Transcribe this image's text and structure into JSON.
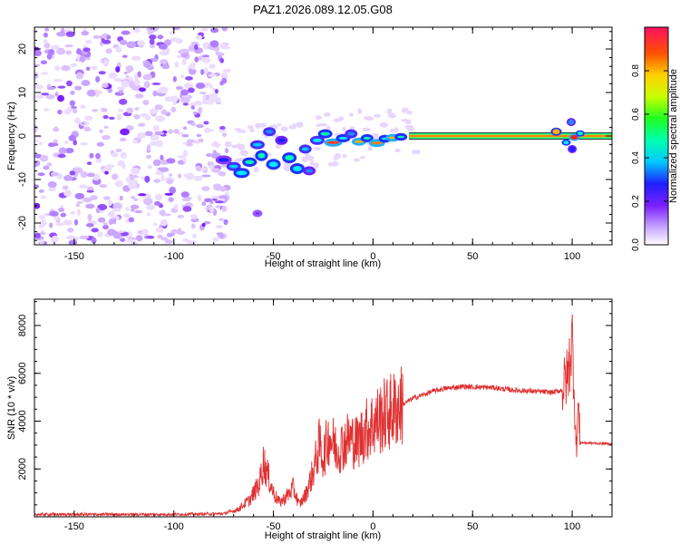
{
  "title": "PAZ1.2026.089.12.05.G08",
  "colors": {
    "signal": "#e03030",
    "scatter": "#7a1fff",
    "track": "#ff2020",
    "band_edge": "#00e8ff"
  },
  "chart_data": [
    {
      "type": "heatmap",
      "name": "spectrogram",
      "title": "PAZ1.2026.089.12.05.G08",
      "xlabel": "Height of straight line (km)",
      "ylabel": "Frequency (Hz)",
      "xlim": [
        -170,
        120
      ],
      "ylim": [
        -25,
        25
      ],
      "x_ticks": [
        -150,
        -100,
        -50,
        0,
        50,
        100
      ],
      "x_tick_labels": [
        "-150",
        "-100",
        "-50",
        "0",
        "50",
        "100"
      ],
      "y_ticks": [
        20,
        10,
        0,
        -10,
        -20
      ],
      "y_tick_labels": [
        "20",
        "10",
        "0",
        "-10",
        "-20"
      ],
      "noise_region_x": [
        -170,
        -73
      ],
      "band_center_hz": 0,
      "colorbar": {
        "label": "Normalized spectral amplitude",
        "range": [
          0,
          1
        ],
        "ticks": [
          0.0,
          0.2,
          0.4,
          0.6,
          0.8
        ],
        "tick_labels": [
          "0.0",
          "0.2",
          "0.4",
          "0.6",
          "0.8"
        ]
      }
    },
    {
      "type": "line",
      "name": "snr",
      "xlabel": "Height of straight line (km)",
      "ylabel": "SNR (10 * v/v)",
      "xlim": [
        -170,
        120
      ],
      "ylim": [
        0,
        9100
      ],
      "x_ticks": [
        -150,
        -100,
        -50,
        0,
        50,
        100
      ],
      "x_tick_labels": [
        "-150",
        "-100",
        "-50",
        "0",
        "50",
        "100"
      ],
      "y_ticks": [
        2000,
        4000,
        6000,
        8000
      ],
      "y_tick_labels": [
        "2000",
        "4000",
        "6000",
        "8000"
      ],
      "series": [
        {
          "name": "SNR",
          "x": [
            -170,
            -100,
            -75,
            -68,
            -62,
            -57,
            -55,
            -53,
            -50,
            -47,
            -44,
            -40,
            -37,
            -34,
            -30,
            -27,
            -25,
            -22,
            -18,
            -12,
            -8,
            -4,
            0,
            5,
            10,
            15,
            20,
            25,
            30,
            35,
            40,
            45,
            50,
            55,
            60,
            65,
            70,
            75,
            80,
            85,
            90,
            95,
            98,
            100,
            101,
            102,
            103,
            104,
            120
          ],
          "y": [
            100,
            100,
            130,
            300,
            700,
            1400,
            2300,
            1800,
            1000,
            600,
            800,
            1200,
            500,
            900,
            1900,
            3000,
            2500,
            3400,
            2800,
            3300,
            3100,
            3600,
            3900,
            4200,
            4450,
            4700,
            4950,
            5100,
            5250,
            5350,
            5400,
            5450,
            5430,
            5420,
            5400,
            5350,
            5300,
            5280,
            5250,
            5230,
            5200,
            5300,
            6000,
            7500,
            5500,
            2700,
            4700,
            3100,
            3050
          ]
        }
      ]
    }
  ]
}
